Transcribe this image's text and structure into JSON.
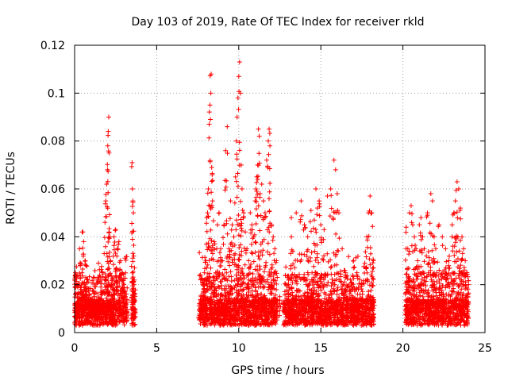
{
  "chart_data": {
    "type": "scatter",
    "title": "Day 103 of 2019, Rate Of TEC Index for receiver rkld",
    "xlabel": "GPS time / hours",
    "ylabel": "ROTI / TECUs",
    "xlim": [
      0,
      25
    ],
    "ylim": [
      0,
      0.12
    ],
    "x_ticks": [
      0,
      5,
      10,
      15,
      20,
      25
    ],
    "x_tick_labels": [
      "0",
      "5",
      "10",
      "15",
      "20",
      "25"
    ],
    "y_ticks": [
      0,
      0.02,
      0.04,
      0.06,
      0.08,
      0.1,
      0.12
    ],
    "y_tick_labels": [
      "0",
      "0.02",
      "0.04",
      "0.06",
      "0.08",
      "0.1",
      "0.12"
    ],
    "grid": true,
    "marker": "+",
    "colors": {
      "series": "#ff0000",
      "grid": "#a0a0a0",
      "axis": "#000000"
    },
    "series": [
      {
        "name": "ROTI",
        "points": [
          [
            0.05,
            0.025
          ],
          [
            0.1,
            0.012
          ],
          [
            0.15,
            0.024
          ],
          [
            0.2,
            0.02
          ],
          [
            0.25,
            0.013
          ],
          [
            0.3,
            0.035
          ],
          [
            0.35,
            0.028
          ],
          [
            0.4,
            0.018
          ],
          [
            0.45,
            0.025
          ],
          [
            0.5,
            0.042
          ],
          [
            0.55,
            0.038
          ],
          [
            0.6,
            0.021
          ],
          [
            0.65,
            0.03
          ],
          [
            0.7,
            0.028
          ],
          [
            0.8,
            0.022
          ],
          [
            0.9,
            0.016
          ],
          [
            1.0,
            0.012
          ],
          [
            1.1,
            0.013
          ],
          [
            1.2,
            0.015
          ],
          [
            1.3,
            0.011
          ],
          [
            1.4,
            0.012
          ],
          [
            1.5,
            0.014
          ],
          [
            1.6,
            0.019
          ],
          [
            1.7,
            0.025
          ],
          [
            1.8,
            0.033
          ],
          [
            1.85,
            0.046
          ],
          [
            1.9,
            0.055
          ],
          [
            1.95,
            0.062
          ],
          [
            2.0,
            0.068
          ],
          [
            2.02,
            0.078
          ],
          [
            2.05,
            0.084
          ],
          [
            2.08,
            0.09
          ],
          [
            2.1,
            0.075
          ],
          [
            2.15,
            0.04
          ],
          [
            2.2,
            0.03
          ],
          [
            2.3,
            0.022
          ],
          [
            2.4,
            0.04
          ],
          [
            2.5,
            0.043
          ],
          [
            2.6,
            0.035
          ],
          [
            2.7,
            0.038
          ],
          [
            2.8,
            0.03
          ],
          [
            2.9,
            0.025
          ],
          [
            3.0,
            0.02
          ],
          [
            3.1,
            0.015
          ],
          [
            3.5,
            0.071
          ],
          [
            3.52,
            0.06
          ],
          [
            3.55,
            0.055
          ],
          [
            3.58,
            0.05
          ],
          [
            3.6,
            0.032
          ],
          [
            3.62,
            0.02
          ],
          [
            3.65,
            0.01
          ],
          [
            7.6,
            0.012
          ],
          [
            7.7,
            0.015
          ],
          [
            7.8,
            0.02
          ],
          [
            7.9,
            0.025
          ],
          [
            8.0,
            0.03
          ],
          [
            8.05,
            0.048
          ],
          [
            8.1,
            0.05
          ],
          [
            8.15,
            0.06
          ],
          [
            8.2,
            0.087
          ],
          [
            8.25,
            0.095
          ],
          [
            8.3,
            0.1
          ],
          [
            8.32,
            0.108
          ],
          [
            8.35,
            0.069
          ],
          [
            8.4,
            0.055
          ],
          [
            8.5,
            0.038
          ],
          [
            8.6,
            0.025
          ],
          [
            8.7,
            0.045
          ],
          [
            8.8,
            0.05
          ],
          [
            8.9,
            0.035
          ],
          [
            9.0,
            0.03
          ],
          [
            9.1,
            0.045
          ],
          [
            9.2,
            0.076
          ],
          [
            9.3,
            0.086
          ],
          [
            9.4,
            0.035
          ],
          [
            9.5,
            0.055
          ],
          [
            9.6,
            0.045
          ],
          [
            9.7,
            0.04
          ],
          [
            9.8,
            0.065
          ],
          [
            9.85,
            0.08
          ],
          [
            9.9,
            0.09
          ],
          [
            9.95,
            0.098
          ],
          [
            10.0,
            0.107
          ],
          [
            10.05,
            0.113
          ],
          [
            10.1,
            0.1
          ],
          [
            10.15,
            0.07
          ],
          [
            10.2,
            0.06
          ],
          [
            10.3,
            0.05
          ],
          [
            10.4,
            0.042
          ],
          [
            10.5,
            0.035
          ],
          [
            10.6,
            0.03
          ],
          [
            10.7,
            0.05
          ],
          [
            10.8,
            0.045
          ],
          [
            10.9,
            0.04
          ],
          [
            11.0,
            0.055
          ],
          [
            11.05,
            0.06
          ],
          [
            11.1,
            0.065
          ],
          [
            11.15,
            0.07
          ],
          [
            11.2,
            0.085
          ],
          [
            11.25,
            0.082
          ],
          [
            11.3,
            0.058
          ],
          [
            11.4,
            0.062
          ],
          [
            11.5,
            0.055
          ],
          [
            11.6,
            0.05
          ],
          [
            11.7,
            0.072
          ],
          [
            11.8,
            0.08
          ],
          [
            11.85,
            0.085
          ],
          [
            11.9,
            0.078
          ],
          [
            12.0,
            0.045
          ],
          [
            12.1,
            0.04
          ],
          [
            12.2,
            0.035
          ],
          [
            12.3,
            0.03
          ],
          [
            12.5,
            0.015
          ],
          [
            13.0,
            0.02
          ],
          [
            13.2,
            0.048
          ],
          [
            13.5,
            0.05
          ],
          [
            13.8,
            0.055
          ],
          [
            14.0,
            0.045
          ],
          [
            14.2,
            0.04
          ],
          [
            14.4,
            0.051
          ],
          [
            14.6,
            0.047
          ],
          [
            14.7,
            0.06
          ],
          [
            14.8,
            0.052
          ],
          [
            14.9,
            0.055
          ],
          [
            15.0,
            0.045
          ],
          [
            15.2,
            0.043
          ],
          [
            15.4,
            0.057
          ],
          [
            15.6,
            0.06
          ],
          [
            15.8,
            0.072
          ],
          [
            15.9,
            0.068
          ],
          [
            16.0,
            0.058
          ],
          [
            16.1,
            0.05
          ],
          [
            16.3,
            0.035
          ],
          [
            16.5,
            0.025
          ],
          [
            16.8,
            0.022
          ],
          [
            17.0,
            0.03
          ],
          [
            17.2,
            0.025
          ],
          [
            17.5,
            0.02
          ],
          [
            17.8,
            0.04
          ],
          [
            17.9,
            0.05
          ],
          [
            18.0,
            0.057
          ],
          [
            18.1,
            0.05
          ],
          [
            18.2,
            0.03
          ],
          [
            20.2,
            0.044
          ],
          [
            20.3,
            0.035
          ],
          [
            20.4,
            0.05
          ],
          [
            20.5,
            0.053
          ],
          [
            20.6,
            0.045
          ],
          [
            20.7,
            0.04
          ],
          [
            20.8,
            0.035
          ],
          [
            20.9,
            0.03
          ],
          [
            21.0,
            0.045
          ],
          [
            21.1,
            0.048
          ],
          [
            21.2,
            0.04
          ],
          [
            21.3,
            0.035
          ],
          [
            21.5,
            0.05
          ],
          [
            21.7,
            0.058
          ],
          [
            21.8,
            0.055
          ],
          [
            21.9,
            0.04
          ],
          [
            22.0,
            0.035
          ],
          [
            22.2,
            0.045
          ],
          [
            22.4,
            0.04
          ],
          [
            22.6,
            0.035
          ],
          [
            22.8,
            0.03
          ],
          [
            23.0,
            0.045
          ],
          [
            23.1,
            0.05
          ],
          [
            23.2,
            0.055
          ],
          [
            23.3,
            0.063
          ],
          [
            23.4,
            0.06
          ],
          [
            23.5,
            0.052
          ],
          [
            23.6,
            0.04
          ],
          [
            23.7,
            0.035
          ],
          [
            23.8,
            0.03
          ],
          [
            23.9,
            0.025
          ],
          [
            24.0,
            0.02
          ]
        ]
      }
    ],
    "observed_arcs": [
      [
        0.0,
        3.2
      ],
      [
        3.45,
        3.7
      ],
      [
        7.6,
        12.35
      ],
      [
        12.7,
        16.7
      ],
      [
        16.75,
        18.25
      ],
      [
        20.15,
        24.0
      ]
    ]
  }
}
